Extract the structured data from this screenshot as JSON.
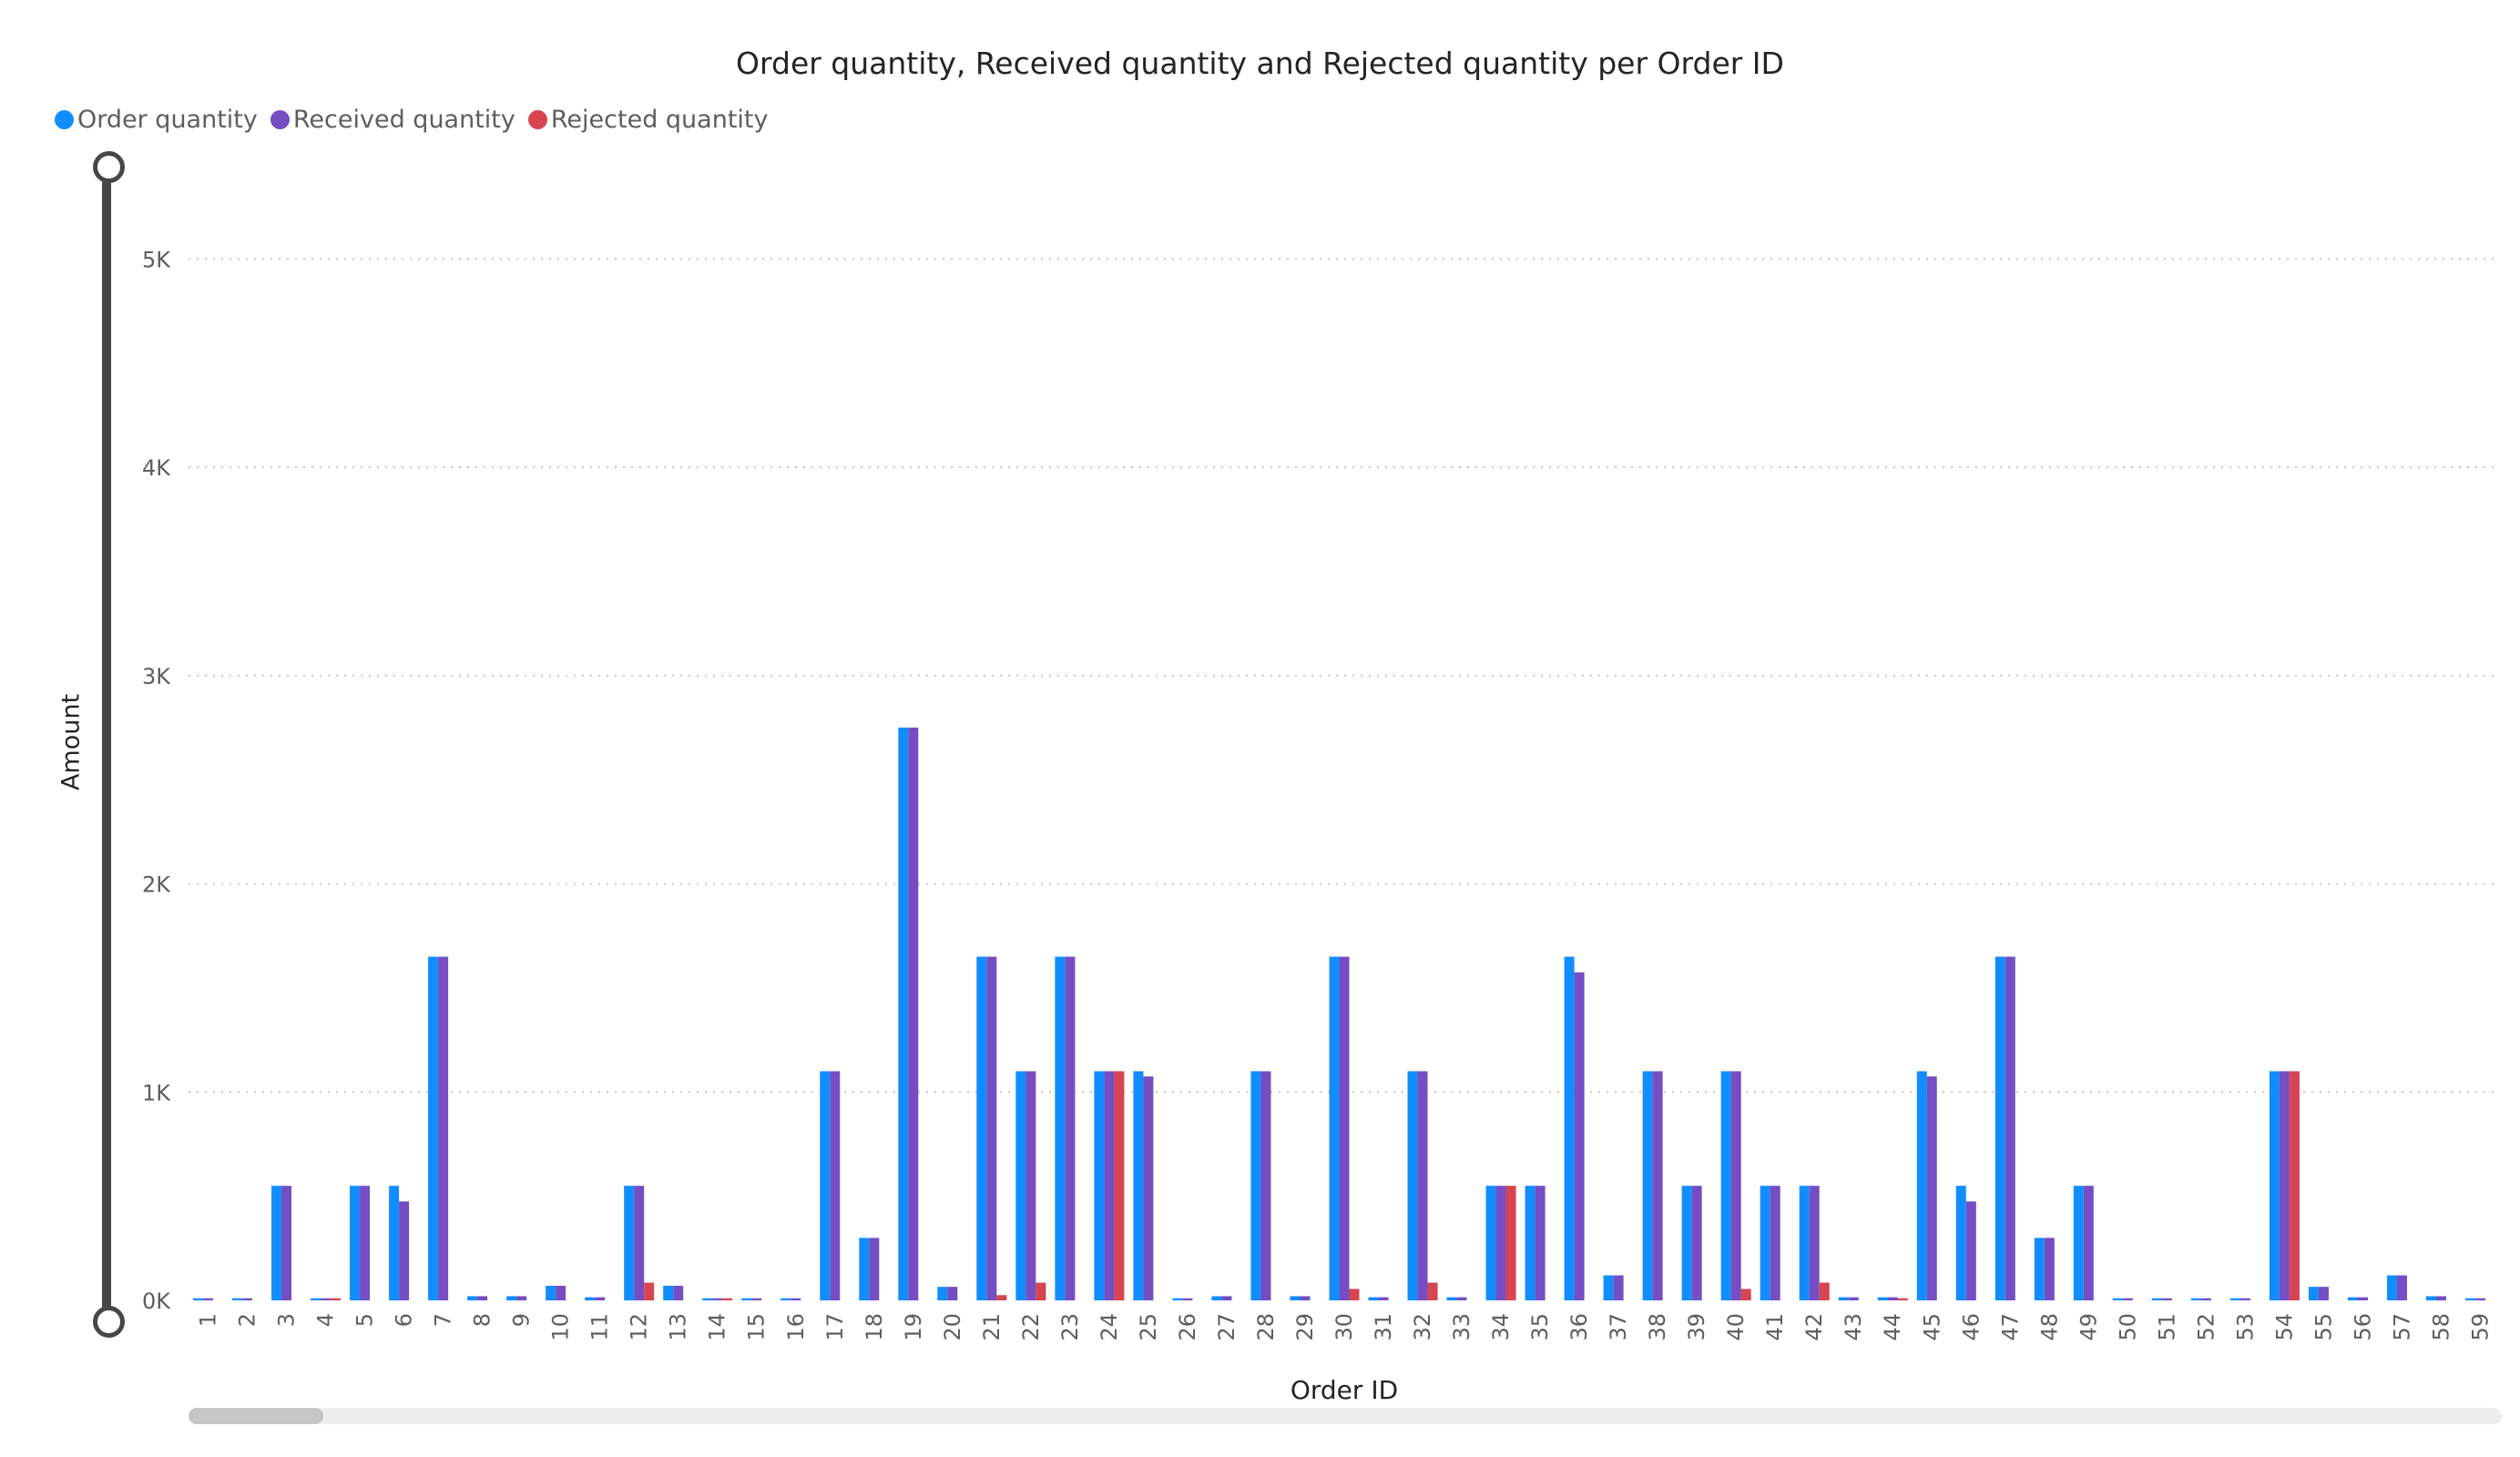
{
  "chart_data": {
    "type": "bar",
    "title": "Order quantity, Received quantity and Rejected quantity per Order ID",
    "xlabel": "Order ID",
    "ylabel": "Amount",
    "ylim": [
      0,
      5500
    ],
    "yticks": [
      0,
      1000,
      2000,
      3000,
      4000,
      5000
    ],
    "ytick_labels": [
      "0K",
      "1K",
      "2K",
      "3K",
      "4K",
      "5K"
    ],
    "grid": true,
    "legend_position": "top-left",
    "categories": [
      "1",
      "2",
      "3",
      "4",
      "5",
      "6",
      "7",
      "8",
      "9",
      "10",
      "11",
      "12",
      "13",
      "14",
      "15",
      "16",
      "17",
      "18",
      "19",
      "20",
      "21",
      "22",
      "23",
      "24",
      "25",
      "26",
      "27",
      "28",
      "29",
      "30",
      "31",
      "32",
      "33",
      "34",
      "35",
      "36",
      "37",
      "38",
      "39",
      "40",
      "41",
      "42",
      "43",
      "44",
      "45",
      "46",
      "47",
      "48",
      "49",
      "50",
      "51",
      "52",
      "53",
      "54",
      "55",
      "56",
      "57",
      "58",
      "59"
    ],
    "series": [
      {
        "name": "Order quantity",
        "color": "#118DFF",
        "values": [
          10,
          10,
          550,
          10,
          550,
          550,
          1650,
          20,
          20,
          70,
          15,
          550,
          70,
          10,
          10,
          10,
          1100,
          300,
          2750,
          65,
          1650,
          1100,
          1650,
          1100,
          1100,
          10,
          20,
          1100,
          20,
          1650,
          15,
          1100,
          15,
          550,
          550,
          1650,
          120,
          1100,
          550,
          1100,
          550,
          550,
          15,
          15,
          1100,
          550,
          1650,
          300,
          550,
          10,
          10,
          10,
          10,
          1100,
          65,
          15,
          120,
          20,
          10
        ]
      },
      {
        "name": "Received quantity",
        "color": "#744EC2",
        "values": [
          10,
          10,
          550,
          10,
          550,
          475,
          1650,
          20,
          20,
          70,
          15,
          550,
          70,
          10,
          10,
          10,
          1100,
          300,
          2750,
          65,
          1650,
          1100,
          1650,
          1100,
          1075,
          10,
          20,
          1100,
          20,
          1650,
          15,
          1100,
          15,
          550,
          550,
          1575,
          120,
          1100,
          550,
          1100,
          550,
          550,
          15,
          15,
          1075,
          475,
          1650,
          300,
          550,
          10,
          10,
          10,
          10,
          1100,
          65,
          15,
          120,
          20,
          10
        ]
      },
      {
        "name": "Rejected quantity",
        "color": "#D64550",
        "values": [
          0,
          0,
          0,
          10,
          0,
          0,
          0,
          0,
          0,
          0,
          0,
          85,
          0,
          10,
          0,
          0,
          0,
          0,
          0,
          0,
          25,
          85,
          0,
          1100,
          0,
          0,
          0,
          0,
          0,
          55,
          0,
          85,
          0,
          550,
          0,
          0,
          0,
          0,
          0,
          55,
          0,
          85,
          0,
          10,
          0,
          0,
          0,
          0,
          0,
          0,
          0,
          0,
          0,
          1100,
          0,
          0,
          0,
          0,
          0
        ]
      }
    ]
  }
}
